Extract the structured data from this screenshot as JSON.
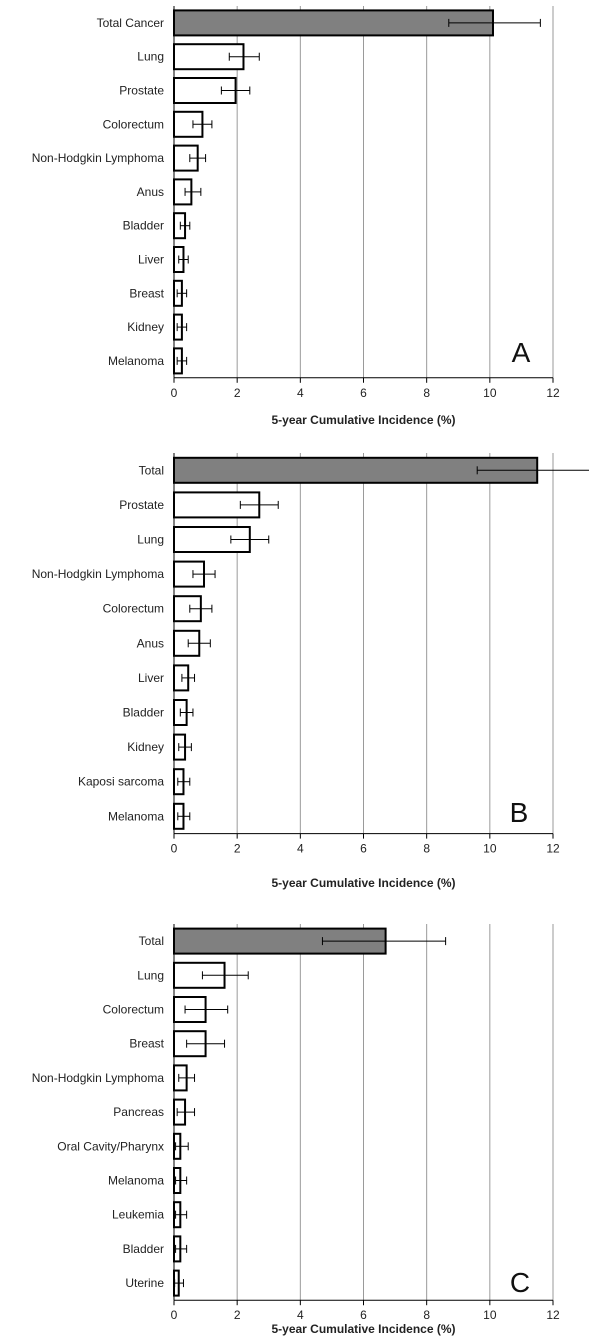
{
  "chart_data": [
    {
      "type": "bar",
      "orientation": "horizontal",
      "panel_label": "A",
      "xlabel": "5-year Cumulative Incidence (%)",
      "xlim": [
        0,
        12
      ],
      "xticks": [
        "0",
        "2",
        "4",
        "6",
        "8",
        "10",
        "12"
      ],
      "grid": "vertical",
      "categories": [
        "Total Cancer",
        "Lung",
        "Prostate",
        "Colorectum",
        "Non-Hodgkin Lymphoma",
        "Anus",
        "Bladder",
        "Liver",
        "Breast",
        "Kidney",
        "Melanoma"
      ],
      "values": [
        10.1,
        2.2,
        1.95,
        0.9,
        0.75,
        0.55,
        0.35,
        0.3,
        0.25,
        0.25,
        0.25
      ],
      "error_low": [
        8.7,
        1.75,
        1.5,
        0.6,
        0.5,
        0.35,
        0.2,
        0.15,
        0.1,
        0.1,
        0.1
      ],
      "error_high": [
        11.6,
        2.7,
        2.4,
        1.2,
        1.0,
        0.85,
        0.5,
        0.45,
        0.4,
        0.4,
        0.4
      ],
      "highlight_color": "#808080"
    },
    {
      "type": "bar",
      "orientation": "horizontal",
      "panel_label": "B",
      "xlabel": "5-year Cumulative Incidence (%)",
      "xlim": [
        0,
        12
      ],
      "xticks": [
        "0",
        "2",
        "4",
        "6",
        "8",
        "10",
        "12"
      ],
      "grid": "vertical",
      "categories": [
        "Total",
        "Prostate",
        "Lung",
        "Non-Hodgkin Lymphoma",
        "Colorectum",
        "Anus",
        "Liver",
        "Bladder",
        "Kidney",
        "Kaposi sarcoma",
        "Melanoma"
      ],
      "values": [
        11.5,
        2.7,
        2.4,
        0.95,
        0.85,
        0.8,
        0.45,
        0.4,
        0.35,
        0.3,
        0.3
      ],
      "error_low": [
        9.6,
        2.1,
        1.8,
        0.6,
        0.5,
        0.45,
        0.25,
        0.2,
        0.15,
        0.12,
        0.12
      ],
      "error_high": [
        13.4,
        3.3,
        3.0,
        1.3,
        1.2,
        1.15,
        0.65,
        0.6,
        0.55,
        0.5,
        0.5
      ],
      "highlight_color": "#808080"
    },
    {
      "type": "bar",
      "orientation": "horizontal",
      "panel_label": "C",
      "xlabel": "5-year Cumulative Incidence (%)",
      "xlim": [
        0,
        12
      ],
      "xticks": [
        "0",
        "2",
        "4",
        "6",
        "8",
        "10",
        "12"
      ],
      "grid": "vertical",
      "categories": [
        "Total",
        "Lung",
        "Colorectum",
        "Breast",
        "Non-Hodgkin Lymphoma",
        "Pancreas",
        "Oral Cavity/Pharynx",
        "Melanoma",
        "Leukemia",
        "Bladder",
        "Uterine"
      ],
      "values": [
        6.7,
        1.6,
        1.0,
        1.0,
        0.4,
        0.35,
        0.2,
        0.2,
        0.2,
        0.2,
        0.15
      ],
      "error_low": [
        4.7,
        0.9,
        0.35,
        0.4,
        0.15,
        0.1,
        0.05,
        0.05,
        0.05,
        0.05,
        0.02
      ],
      "error_high": [
        8.6,
        2.35,
        1.7,
        1.6,
        0.65,
        0.65,
        0.45,
        0.4,
        0.4,
        0.4,
        0.3
      ],
      "highlight_color": "#808080"
    }
  ]
}
